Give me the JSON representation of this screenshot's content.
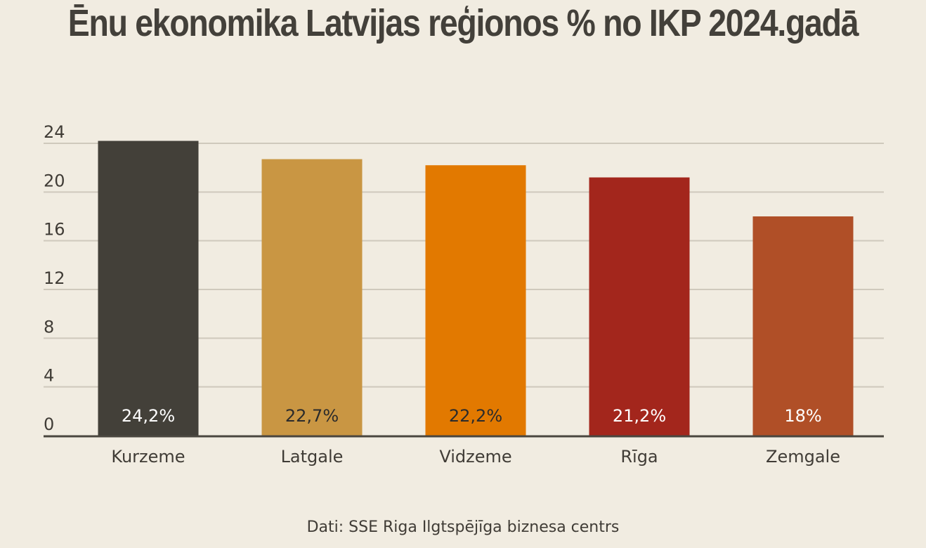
{
  "chart_data": {
    "type": "bar",
    "title": "Ēnu ekonomika Latvijas reģionos % no IKP 2024.gadā",
    "categories": [
      "Kurzeme",
      "Latgale",
      "Vidzeme",
      "Rīga",
      "Zemgale"
    ],
    "values": [
      24.2,
      22.7,
      22.2,
      21.2,
      18
    ],
    "data_labels": [
      "24,2%",
      "22,7%",
      "22,2%",
      "21,2%",
      "18%"
    ],
    "bar_colors": [
      "#434039",
      "#c99643",
      "#e27900",
      "#a3261c",
      "#b04f27"
    ],
    "label_colors": [
      "#ffffff",
      "#2b2b2b",
      "#2b2b2b",
      "#ffffff",
      "#ffffff"
    ],
    "y_ticks": [
      0,
      4,
      8,
      12,
      16,
      20,
      24
    ],
    "ylim": [
      0,
      24
    ],
    "grid": true,
    "legend": "none",
    "xlabel": "",
    "ylabel": "",
    "source": "Dati: SSE Riga Ilgtspējīga biznesa centrs"
  },
  "colors": {
    "background": "#f1ece1",
    "gridline": "#cfc9bc",
    "axis": "#4a463f"
  }
}
